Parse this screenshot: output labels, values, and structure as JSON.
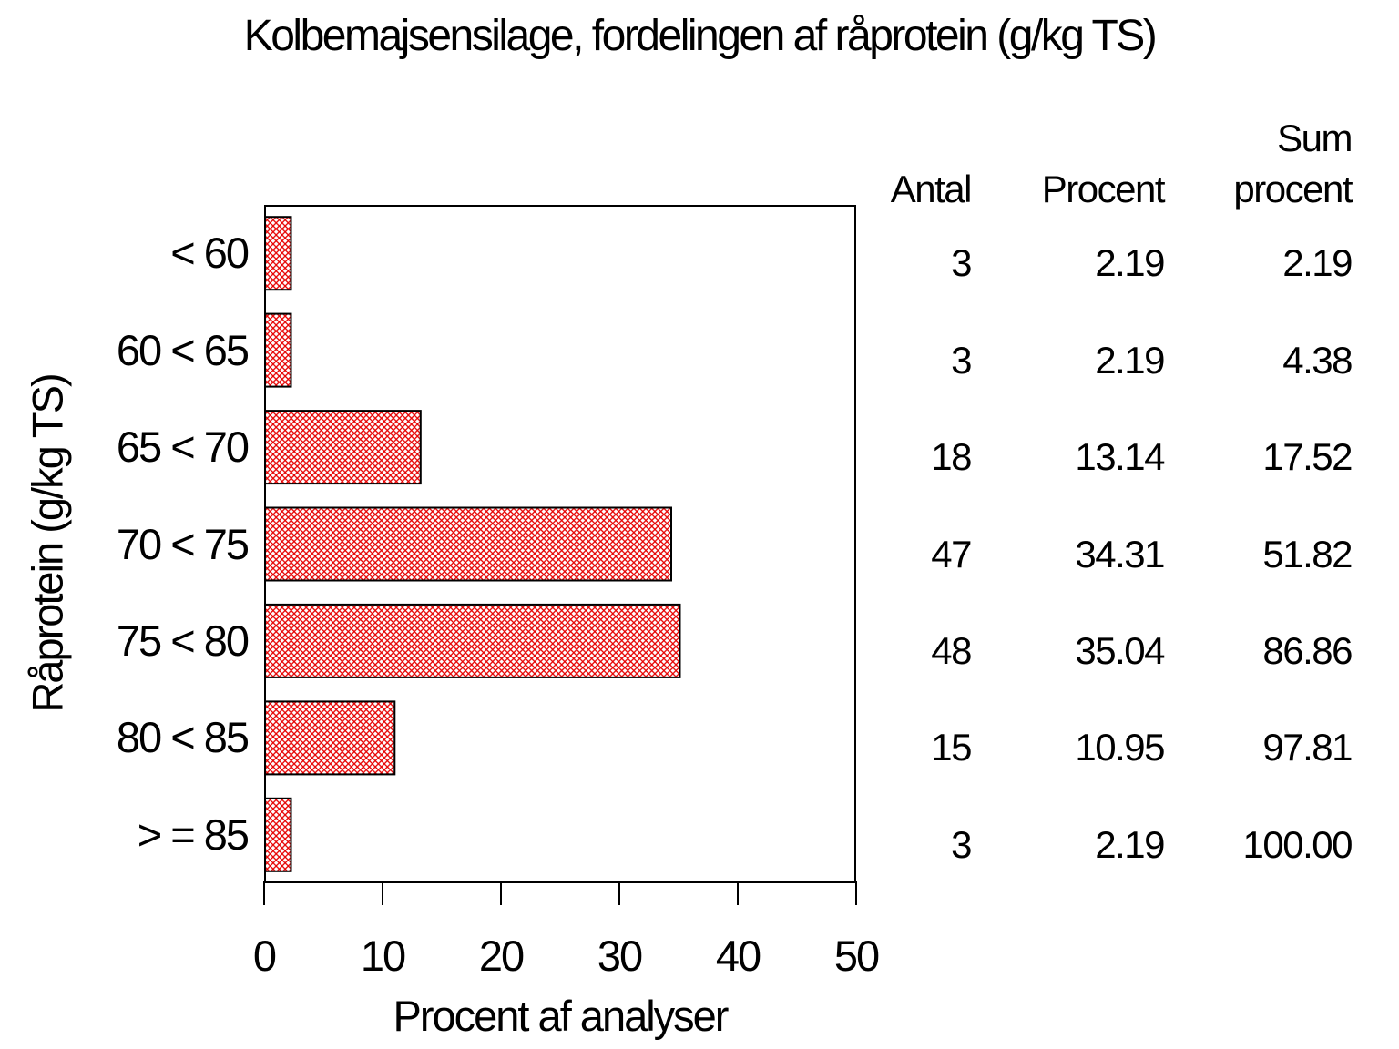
{
  "chart_data": {
    "type": "bar",
    "orientation": "horizontal",
    "title": "Kolbemajsensilage, fordelingen af råprotein (g/kg TS)",
    "xlabel": "Procent af analyser",
    "ylabel": "Råprotein (g/kg TS)",
    "categories": [
      "< 60",
      "60 < 65",
      "65 < 70",
      "70 < 75",
      "75 < 80",
      "80 < 85",
      "> = 85"
    ],
    "values": [
      2.19,
      2.19,
      13.14,
      34.31,
      35.04,
      10.95,
      2.19
    ],
    "xlim": [
      0,
      50
    ],
    "xticks": [
      0,
      10,
      20,
      30,
      40,
      50
    ],
    "grid": false,
    "legend": "none",
    "bar_style": {
      "fill_pattern": "red-crosshatch",
      "pattern_color": "#e60000",
      "border_color": "#000000",
      "background": "#ffffff"
    },
    "table": {
      "header_lines": {
        "antal": "Antal",
        "procent": "Procent",
        "sum_top": "Sum",
        "sum_bottom": "procent"
      },
      "rows": [
        {
          "antal": "3",
          "procent": "2.19",
          "sum": "2.19"
        },
        {
          "antal": "3",
          "procent": "2.19",
          "sum": "4.38"
        },
        {
          "antal": "18",
          "procent": "13.14",
          "sum": "17.52"
        },
        {
          "antal": "47",
          "procent": "34.31",
          "sum": "51.82"
        },
        {
          "antal": "48",
          "procent": "35.04",
          "sum": "86.86"
        },
        {
          "antal": "15",
          "procent": "10.95",
          "sum": "97.81"
        },
        {
          "antal": "3",
          "procent": "2.19",
          "sum": "100.00"
        }
      ]
    }
  }
}
